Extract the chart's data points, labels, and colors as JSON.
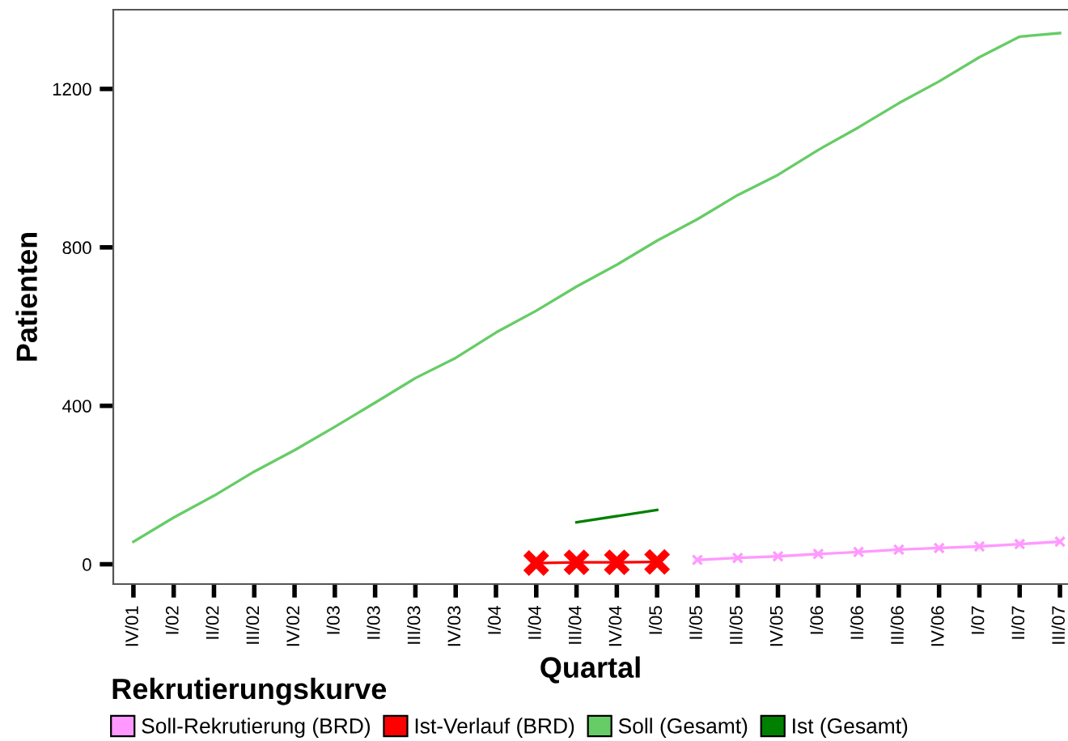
{
  "chart_data": {
    "type": "line",
    "xlabel": "Quartal",
    "ylabel": "Patienten",
    "legend_title": "Rekrutierungskurve",
    "legend": "bottom",
    "grid": false,
    "categories": [
      "IV/01",
      "I/02",
      "II/02",
      "III/02",
      "IV/02",
      "I/03",
      "II/03",
      "III/03",
      "IV/03",
      "I/04",
      "II/04",
      "III/04",
      "IV/04",
      "I/05",
      "II/05",
      "III/05",
      "IV/05",
      "I/06",
      "II/06",
      "III/06",
      "IV/06",
      "I/07",
      "II/07",
      "III/07"
    ],
    "ylim": [
      -50,
      1400
    ],
    "yticks": [
      0,
      400,
      800,
      1200
    ],
    "series": [
      {
        "name": "Soll-Rekrutierung (BRD)",
        "color": "#ff99ff",
        "marker": "cross",
        "values": [
          null,
          null,
          null,
          null,
          null,
          null,
          null,
          null,
          null,
          null,
          null,
          null,
          null,
          null,
          11,
          16,
          20,
          26,
          31,
          37,
          41,
          45,
          51,
          57
        ]
      },
      {
        "name": "Ist-Verlauf (BRD)",
        "color": "#ff0000",
        "marker": "cross",
        "values": [
          null,
          null,
          null,
          null,
          null,
          null,
          null,
          null,
          null,
          null,
          3,
          5,
          5,
          6,
          null,
          null,
          null,
          null,
          null,
          null,
          null,
          null,
          null,
          null
        ]
      },
      {
        "name": "Soll (Gesamt)",
        "color": "#66cc66",
        "marker": "none",
        "values": [
          57,
          118,
          173,
          234,
          288,
          347,
          408,
          470,
          521,
          585,
          640,
          701,
          756,
          817,
          871,
          932,
          983,
          1046,
          1103,
          1164,
          1219,
          1280,
          1332,
          1341
        ]
      },
      {
        "name": "Ist (Gesamt)",
        "color": "#008000",
        "marker": "none",
        "values": [
          null,
          null,
          null,
          null,
          null,
          null,
          null,
          null,
          null,
          null,
          null,
          106,
          null,
          137,
          null,
          null,
          null,
          null,
          null,
          null,
          null,
          null,
          null,
          null
        ]
      }
    ]
  }
}
